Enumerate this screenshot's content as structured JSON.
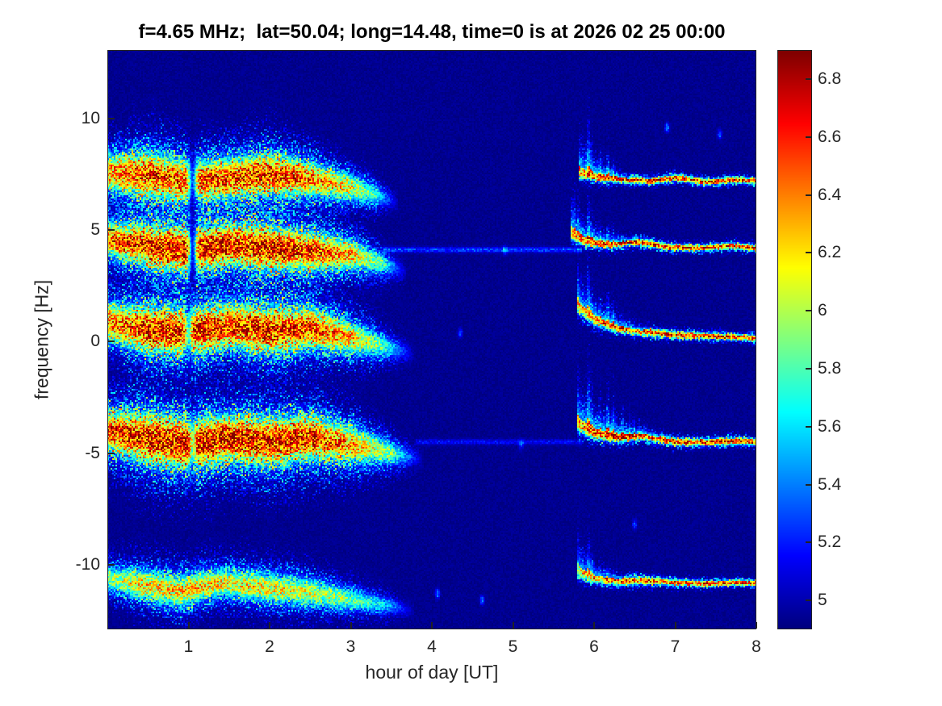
{
  "chart_data": {
    "type": "heatmap",
    "title": "f=4.65 MHz;  lat=50.04; long=14.48, time=0 is at 2026 02 25 00:00",
    "xlabel": "hour of day [UT]",
    "ylabel": "frequency [Hz]",
    "xlim": [
      0,
      8
    ],
    "ylim": [
      -12.9,
      13.08
    ],
    "x_ticks": [
      1,
      2,
      3,
      4,
      5,
      6,
      7,
      8
    ],
    "y_ticks": [
      10,
      5,
      0,
      -5,
      -10
    ],
    "colormap": "jet",
    "colorbar": {
      "min": 4.9,
      "max": 6.9,
      "ticks": [
        5,
        5.2,
        5.4,
        5.6,
        5.8,
        6,
        6.2,
        6.4,
        6.6,
        6.8
      ]
    },
    "background_value": 4.93,
    "bands": [
      {
        "name": "evening +7Hz",
        "t": [
          0,
          0.5,
          1.0,
          1.5,
          2.0,
          2.5,
          3.0,
          3.3,
          3.6
        ],
        "c": [
          7.6,
          7.5,
          7.2,
          7.35,
          7.5,
          7.3,
          6.9,
          6.6,
          6.2
        ],
        "w": [
          0.75,
          1.0,
          0.9,
          0.85,
          0.9,
          0.75,
          0.55,
          0.45,
          0.25
        ],
        "a": [
          1.55,
          1.8,
          1.75,
          1.8,
          1.85,
          1.7,
          1.35,
          0.9,
          0
        ],
        "notch": {
          "t": 1.05,
          "w": 0.035,
          "depth": 0.75
        }
      },
      {
        "name": "evening +4Hz",
        "t": [
          0,
          0.5,
          1.0,
          1.5,
          2.0,
          2.5,
          3.0,
          3.4,
          3.7
        ],
        "c": [
          4.6,
          4.3,
          4.1,
          4.35,
          4.2,
          4.05,
          3.9,
          3.5,
          3.1
        ],
        "w": [
          0.7,
          0.9,
          0.95,
          0.9,
          0.95,
          0.85,
          0.65,
          0.45,
          0.25
        ],
        "a": [
          1.7,
          1.9,
          1.95,
          1.9,
          1.95,
          1.85,
          1.55,
          0.95,
          0
        ],
        "notch": {
          "t": 1.05,
          "w": 0.035,
          "depth": 0.85
        }
      },
      {
        "name": "evening 0Hz",
        "t": [
          0,
          0.5,
          1.0,
          1.5,
          2.0,
          2.5,
          3.0,
          3.4,
          3.8
        ],
        "c": [
          0.9,
          0.55,
          0.4,
          0.7,
          0.5,
          0.6,
          0.2,
          -0.2,
          -0.6
        ],
        "w": [
          0.8,
          1.0,
          1.0,
          0.95,
          1.0,
          0.9,
          0.7,
          0.5,
          0.25
        ],
        "a": [
          1.6,
          1.9,
          1.95,
          1.9,
          1.9,
          1.8,
          1.5,
          0.95,
          0
        ],
        "notch": {
          "t": 1.0,
          "w": 0.03,
          "depth": 0.5
        }
      },
      {
        "name": "evening -4.5Hz",
        "t": [
          0,
          0.5,
          1.0,
          1.5,
          2.0,
          2.5,
          3.0,
          3.5,
          3.9
        ],
        "c": [
          -4.0,
          -4.3,
          -4.6,
          -4.35,
          -4.5,
          -4.3,
          -4.6,
          -5.0,
          -5.3
        ],
        "w": [
          0.9,
          1.1,
          1.1,
          1.0,
          1.05,
          0.95,
          0.8,
          0.5,
          0.25
        ],
        "a": [
          1.8,
          1.95,
          2.0,
          1.95,
          1.95,
          1.9,
          1.6,
          1.05,
          0
        ],
        "notch": {
          "t": 1.05,
          "w": 0.03,
          "depth": 0.4
        }
      },
      {
        "name": "evening -11Hz",
        "t": [
          0,
          0.4,
          0.9,
          1.4,
          1.9,
          2.4,
          2.9,
          3.4,
          3.8
        ],
        "c": [
          -10.6,
          -10.9,
          -11.2,
          -10.8,
          -11.0,
          -11.2,
          -11.5,
          -11.8,
          -12.1
        ],
        "w": [
          0.5,
          0.65,
          0.7,
          0.6,
          0.65,
          0.6,
          0.5,
          0.35,
          0.2
        ],
        "a": [
          1.1,
          1.4,
          1.45,
          1.4,
          1.35,
          1.3,
          1.1,
          0.75,
          0
        ]
      },
      {
        "name": "morning +7Hz",
        "t": [
          5.82,
          6.0,
          6.3,
          6.7,
          7.0,
          7.4,
          7.7,
          8.0
        ],
        "c": [
          7.6,
          7.4,
          7.3,
          7.2,
          7.35,
          7.15,
          7.25,
          7.2
        ],
        "w": [
          0.22,
          0.18,
          0.15,
          0.13,
          0.14,
          0.12,
          0.13,
          0.12
        ],
        "a": [
          1.6,
          1.8,
          1.85,
          1.9,
          1.85,
          1.9,
          1.85,
          1.9
        ],
        "spread": {
          "until": 6.45,
          "height": 1.8,
          "tail": 0.45
        }
      },
      {
        "name": "morning +4Hz",
        "t": [
          5.72,
          5.9,
          6.2,
          6.5,
          6.9,
          7.3,
          7.7,
          8.0
        ],
        "c": [
          4.85,
          4.5,
          4.35,
          4.5,
          4.25,
          4.2,
          4.3,
          4.2
        ],
        "w": [
          0.26,
          0.2,
          0.16,
          0.15,
          0.13,
          0.12,
          0.13,
          0.12
        ],
        "a": [
          1.5,
          1.8,
          1.85,
          1.9,
          1.9,
          1.9,
          1.85,
          1.9
        ],
        "spread": {
          "until": 6.5,
          "height": 1.5,
          "tail": 0.45
        }
      },
      {
        "name": "morning 0Hz",
        "t": [
          5.8,
          6.0,
          6.3,
          6.6,
          7.0,
          7.4,
          7.8,
          8.0
        ],
        "c": [
          1.6,
          1.0,
          0.6,
          0.45,
          0.3,
          0.25,
          0.2,
          0.15
        ],
        "w": [
          0.28,
          0.23,
          0.18,
          0.16,
          0.14,
          0.13,
          0.12,
          0.12
        ],
        "a": [
          1.4,
          1.7,
          1.8,
          1.85,
          1.9,
          1.85,
          1.9,
          1.9
        ],
        "spread": {
          "until": 6.6,
          "height": 1.6,
          "tail": 0.45
        }
      },
      {
        "name": "morning -4.5Hz",
        "t": [
          5.8,
          6.0,
          6.3,
          6.6,
          7.0,
          7.4,
          7.8,
          8.0
        ],
        "c": [
          -3.7,
          -4.1,
          -4.3,
          -4.2,
          -4.5,
          -4.5,
          -4.45,
          -4.5
        ],
        "w": [
          0.3,
          0.25,
          0.2,
          0.18,
          0.15,
          0.14,
          0.14,
          0.13
        ],
        "a": [
          1.5,
          1.8,
          1.9,
          1.85,
          1.9,
          1.9,
          1.85,
          1.9
        ],
        "spread": {
          "until": 6.8,
          "height": 2.0,
          "tail": 0.45
        }
      },
      {
        "name": "morning -11Hz",
        "t": [
          5.8,
          6.0,
          6.3,
          6.6,
          7.0,
          7.4,
          7.8,
          8.0
        ],
        "c": [
          -10.3,
          -10.6,
          -10.75,
          -10.7,
          -10.8,
          -10.85,
          -10.8,
          -10.85
        ],
        "w": [
          0.26,
          0.2,
          0.17,
          0.15,
          0.13,
          0.12,
          0.12,
          0.12
        ],
        "a": [
          1.3,
          1.6,
          1.75,
          1.8,
          1.8,
          1.85,
          1.8,
          1.85
        ],
        "spread": {
          "until": 6.35,
          "height": 1.4,
          "tail": 0.45
        }
      }
    ],
    "thin_lines": [
      {
        "f": 4.12,
        "t0": 3.4,
        "t1": 5.85,
        "w": 0.08,
        "a": 0.5
      },
      {
        "f": -4.5,
        "t0": 3.8,
        "t1": 5.85,
        "w": 0.08,
        "a": 0.32
      }
    ],
    "speckles": [
      {
        "t": 4.07,
        "f": -11.3,
        "a": 0.8
      },
      {
        "t": 4.62,
        "f": -11.6,
        "a": 0.6
      },
      {
        "t": 5.1,
        "f": -4.6,
        "a": 0.5
      },
      {
        "t": 4.35,
        "f": 0.4,
        "a": 0.5
      },
      {
        "t": 6.9,
        "f": 9.6,
        "a": 0.7
      },
      {
        "t": 7.55,
        "f": 9.3,
        "a": 0.6
      },
      {
        "t": 6.5,
        "f": -8.2,
        "a": 0.5
      },
      {
        "t": 4.9,
        "f": 4.1,
        "a": 0.5
      }
    ]
  }
}
